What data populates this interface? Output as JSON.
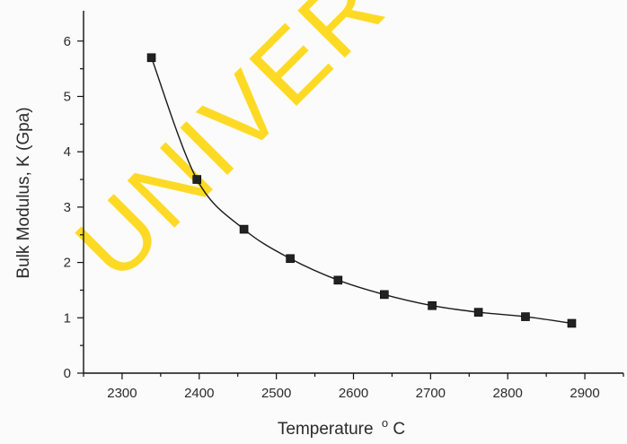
{
  "chart_data": {
    "type": "line",
    "title": "",
    "xlabel": "Temperature",
    "xlabel_unit": "°C",
    "ylabel": "Bulk Modulus, K (Gpa)",
    "xlim": [
      2250,
      2950
    ],
    "ylim": [
      0,
      6.7
    ],
    "xticks": [
      2300,
      2400,
      2500,
      2600,
      2700,
      2800,
      2900
    ],
    "yticks": [
      0,
      1,
      2,
      3,
      4,
      5,
      6
    ],
    "grid": false,
    "legend": "none",
    "marker": "square",
    "series": [
      {
        "x": [
          2338,
          2397,
          2458,
          2518,
          2580,
          2640,
          2702,
          2762,
          2823,
          2883
        ],
        "y": [
          5.7,
          3.5,
          2.6,
          2.07,
          1.68,
          1.42,
          1.22,
          1.1,
          1.02,
          0.9
        ]
      }
    ]
  },
  "watermark": {
    "text": "UNIVERSI",
    "color": "#ffd500"
  }
}
